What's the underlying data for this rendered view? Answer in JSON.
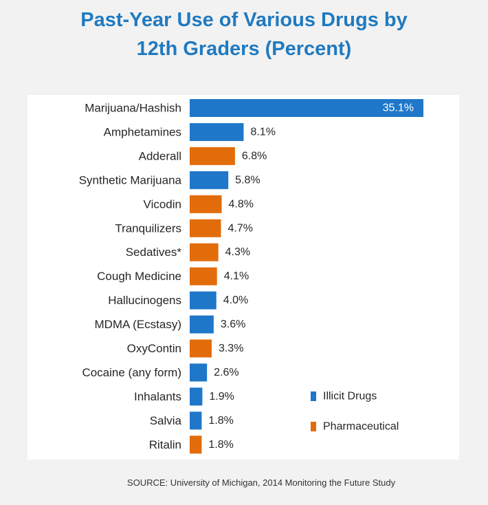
{
  "title_line1": "Past-Year Use of Various Drugs by",
  "title_line2": "12th Graders (Percent)",
  "source": "SOURCE: University of Michigan, 2014 Monitoring the Future Study",
  "colors": {
    "illicit": "#1f77c9",
    "pharmaceutical": "#e36c0a",
    "title": "#1f7ac0"
  },
  "chart_data": {
    "type": "bar",
    "orientation": "horizontal",
    "title": "Past-Year Use of Various Drugs by 12th Graders (Percent)",
    "unit": "%",
    "categories": [
      "Marijuana/Hashish",
      "Amphetamines",
      "Adderall",
      "Synthetic Marijuana",
      "Vicodin",
      "Tranquilizers",
      "Sedatives*",
      "Cough Medicine",
      "Hallucinogens",
      "MDMA (Ecstasy)",
      "OxyContin",
      "Cocaine (any form)",
      "Inhalants",
      "Salvia",
      "Ritalin"
    ],
    "values": [
      35.1,
      8.1,
      6.8,
      5.8,
      4.8,
      4.7,
      4.3,
      4.1,
      4.0,
      3.6,
      3.3,
      2.6,
      1.9,
      1.8,
      1.8
    ],
    "value_labels": [
      "35.1%",
      "8.1%",
      "6.8%",
      "5.8%",
      "4.8%",
      "4.7%",
      "4.3%",
      "4.1%",
      "4.0%",
      "3.6%",
      "3.3%",
      "2.6%",
      "1.9%",
      "1.8%",
      "1.8%"
    ],
    "groups": [
      "Illicit Drugs",
      "Illicit Drugs",
      "Pharmaceutical",
      "Illicit Drugs",
      "Pharmaceutical",
      "Pharmaceutical",
      "Pharmaceutical",
      "Pharmaceutical",
      "Illicit Drugs",
      "Illicit Drugs",
      "Pharmaceutical",
      "Illicit Drugs",
      "Illicit Drugs",
      "Illicit Drugs",
      "Pharmaceutical"
    ],
    "legend": [
      {
        "name": "Illicit Drugs",
        "color": "#1f77c9"
      },
      {
        "name": "Pharmaceutical",
        "color": "#e36c0a"
      }
    ],
    "legend_position": "bottom-right",
    "xlim": [
      0,
      35.1
    ],
    "grid": false
  }
}
